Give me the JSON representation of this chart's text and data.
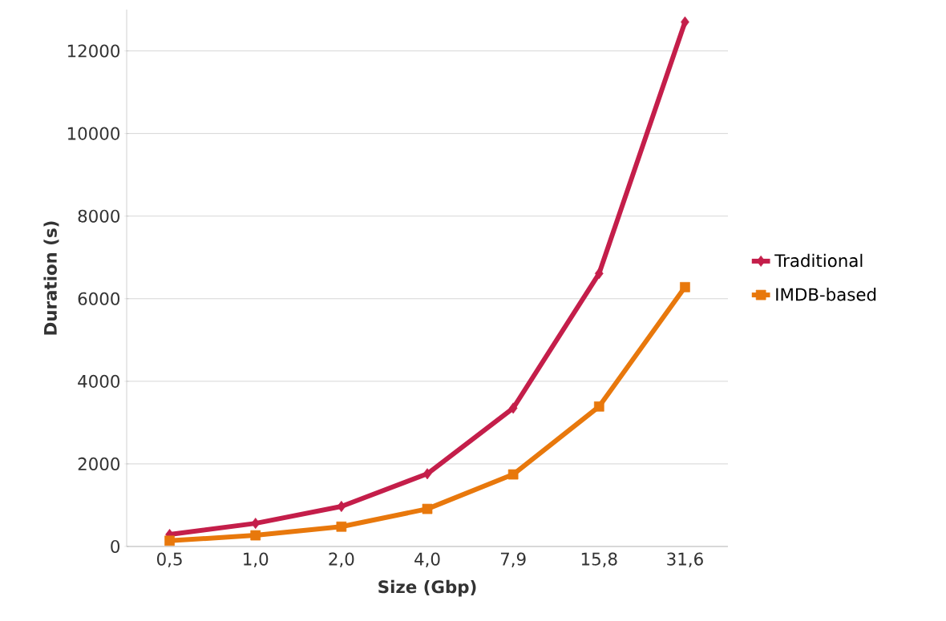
{
  "chart_data": {
    "type": "line",
    "xlabel": "Size (Gbp)",
    "ylabel": "Duration (s)",
    "categories": [
      "0,5",
      "1,0",
      "2,0",
      "4,0",
      "7,9",
      "15,8",
      "31,6"
    ],
    "series": [
      {
        "name": "Traditional",
        "color": "#c41e4a",
        "marker": "diamond",
        "values": [
          290,
          560,
          970,
          1760,
          3350,
          6610,
          12700
        ]
      },
      {
        "name": "IMDB-based",
        "color": "#e8780c",
        "marker": "square",
        "values": [
          140,
          270,
          480,
          910,
          1745,
          3390,
          6280
        ]
      }
    ],
    "ylim": [
      0,
      13000
    ],
    "yticks": [
      0,
      2000,
      4000,
      6000,
      8000,
      10000,
      12000
    ],
    "grid": "y",
    "legend": "right",
    "line_style": "solid"
  }
}
